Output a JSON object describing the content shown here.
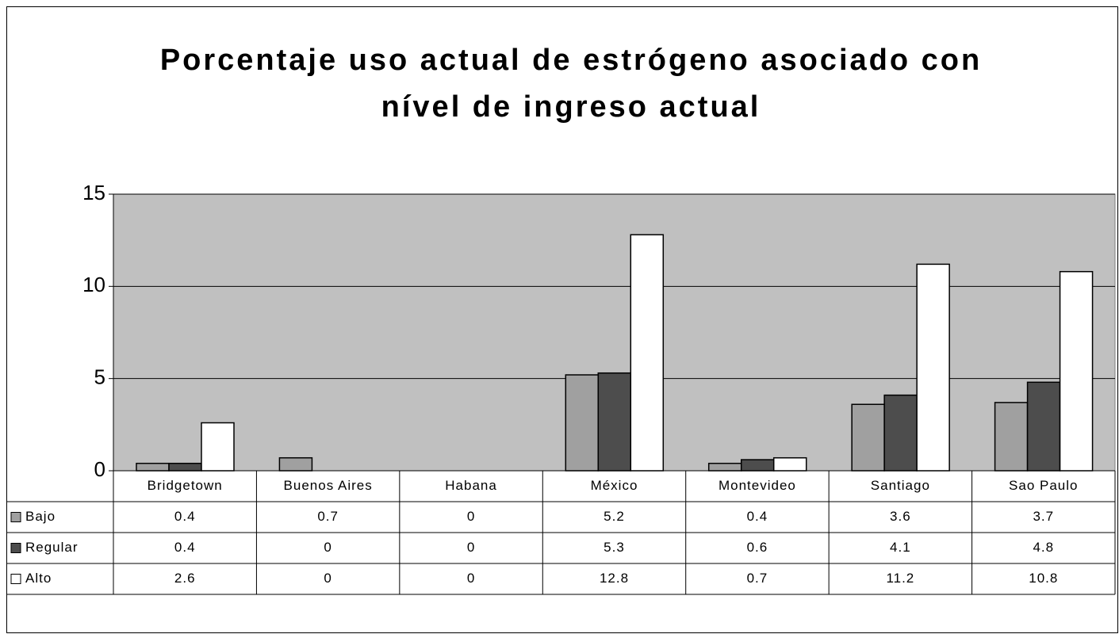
{
  "chart_data": {
    "type": "bar",
    "title": [
      "Porcentaje uso actual de estrógeno asociado con",
      "nível de ingreso actual"
    ],
    "categories": [
      "Bridgetown",
      "Buenos Aires",
      "Habana",
      "México",
      "Montevideo",
      "Santiago",
      "Sao Paulo"
    ],
    "series": [
      {
        "name": "Bajo",
        "color": "#a0a0a0",
        "values": [
          0.4,
          0.7,
          0,
          5.2,
          0.4,
          3.6,
          3.7
        ]
      },
      {
        "name": "Regular",
        "color": "#4d4d4d",
        "values": [
          0.4,
          0,
          0,
          5.3,
          0.6,
          4.1,
          4.8
        ]
      },
      {
        "name": "Alto",
        "color": "#ffffff",
        "values": [
          2.6,
          0,
          0,
          12.8,
          0.7,
          11.2,
          10.8
        ]
      }
    ],
    "ylim": [
      0,
      15
    ],
    "yticks": [
      0,
      5,
      10,
      15
    ],
    "grid": true,
    "plot_background": "#c0c0c0"
  }
}
